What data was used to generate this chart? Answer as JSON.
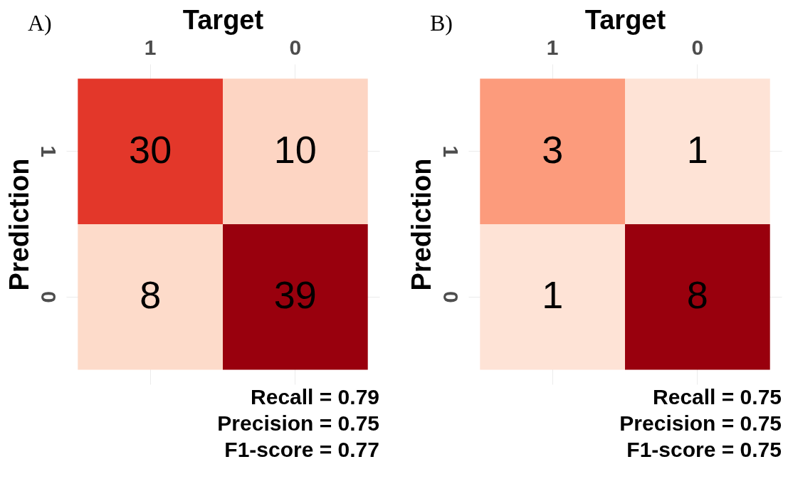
{
  "chart_data": [
    {
      "type": "heatmap",
      "title": "A)",
      "xlabel": "Target",
      "ylabel": "Prediction",
      "categories": [
        "1",
        "0"
      ],
      "y_categories": [
        "1",
        "0"
      ],
      "cells": [
        [
          30,
          10
        ],
        [
          8,
          39
        ]
      ],
      "colors": [
        "#e3372a",
        "#fdd5c3",
        "#fddbca",
        "#99000d"
      ],
      "data_labels": true,
      "grid": true,
      "annotations": [
        "Recall = 0.79",
        "Precision = 0.75",
        "F1-score = 0.77"
      ]
    },
    {
      "type": "heatmap",
      "title": "B)",
      "xlabel": "Target",
      "ylabel": "Prediction",
      "categories": [
        "1",
        "0"
      ],
      "y_categories": [
        "1",
        "0"
      ],
      "cells": [
        [
          3,
          1
        ],
        [
          1,
          8
        ]
      ],
      "colors": [
        "#fc9b7c",
        "#fee3d6",
        "#fee3d6",
        "#99000d"
      ],
      "data_labels": true,
      "grid": true,
      "annotations": [
        "Recall = 0.75",
        "Precision = 0.75",
        "F1-score = 0.75"
      ]
    }
  ]
}
